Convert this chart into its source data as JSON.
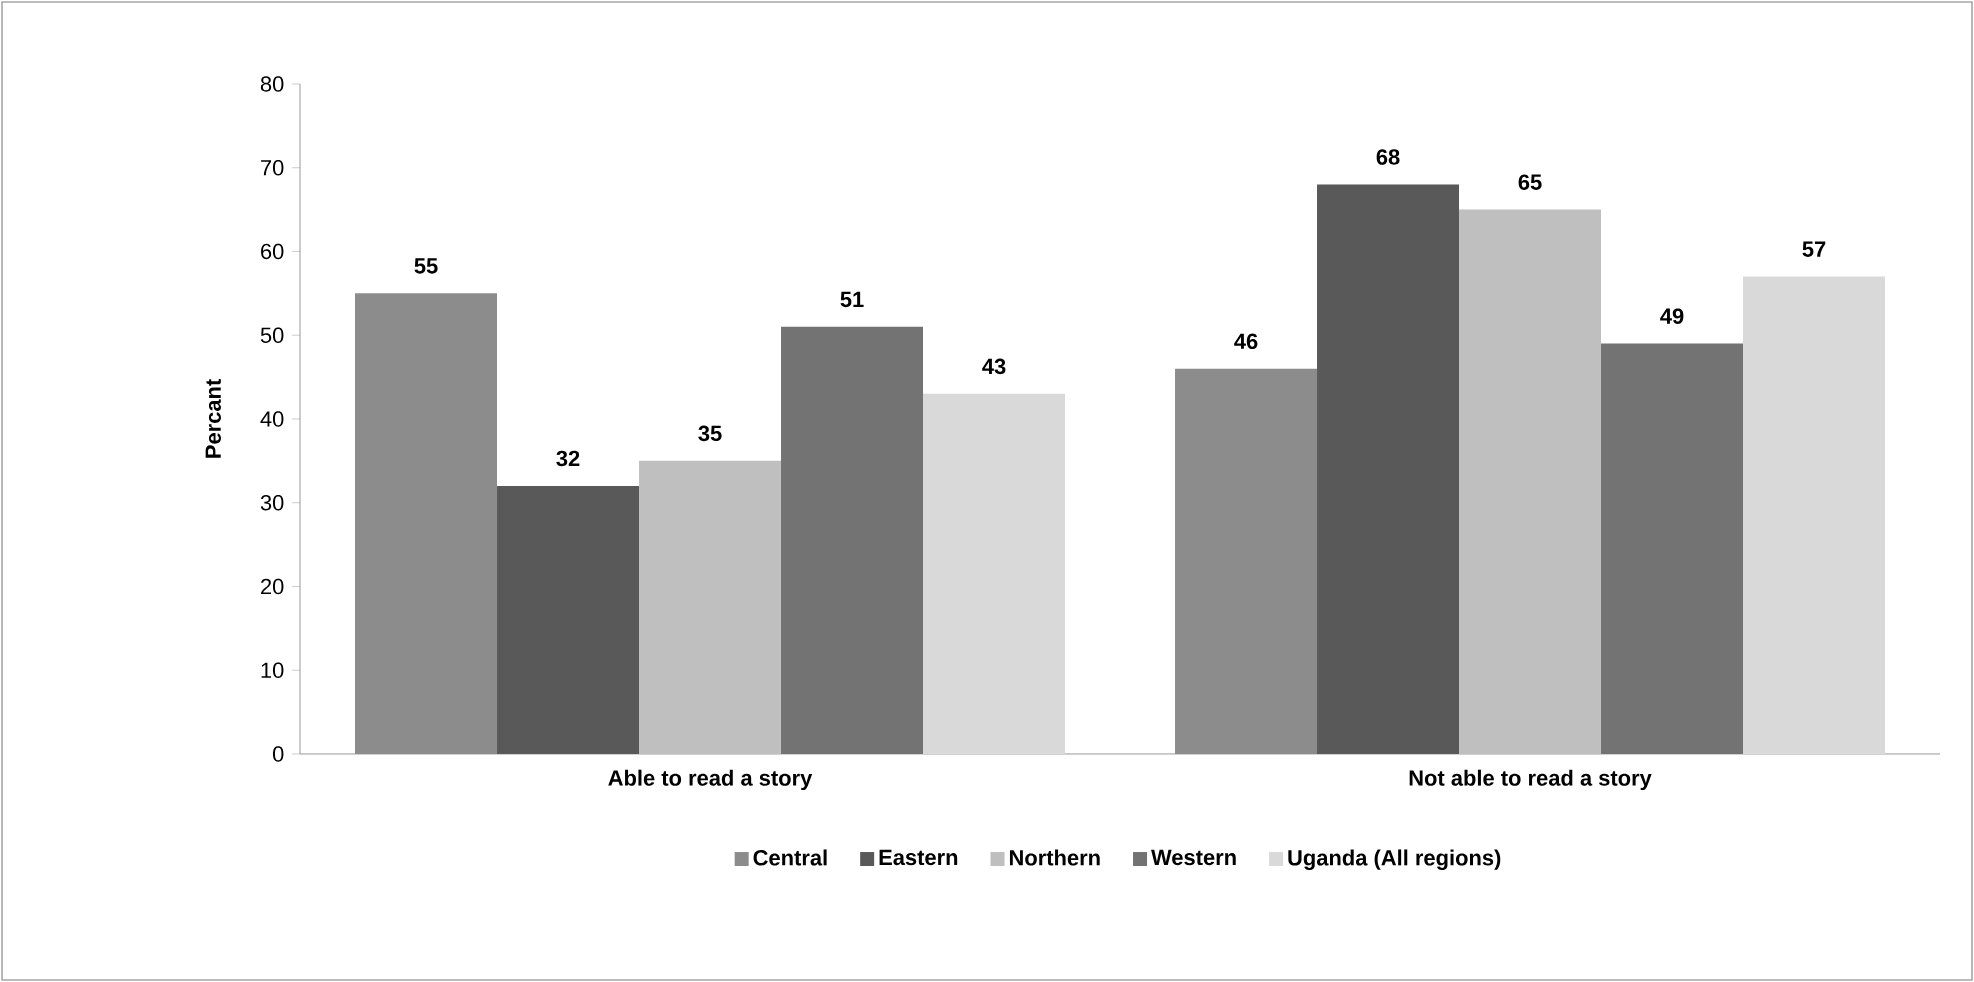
{
  "chart_data": {
    "type": "bar",
    "ylabel": "Percant",
    "categories": [
      "Able to read a story",
      "Not able to read a story"
    ],
    "series": [
      {
        "name": "Central",
        "color": "#8c8c8c",
        "values": [
          55,
          46
        ]
      },
      {
        "name": "Eastern",
        "color": "#595959",
        "values": [
          32,
          68
        ]
      },
      {
        "name": "Northern",
        "color": "#bfbfbf",
        "values": [
          35,
          65
        ]
      },
      {
        "name": "Western",
        "color": "#737373",
        "values": [
          51,
          49
        ]
      },
      {
        "name": "Uganda (All regions)",
        "color": "#d9d9d9",
        "values": [
          43,
          57
        ]
      }
    ],
    "ylim": [
      0,
      80
    ],
    "yticks": [
      0,
      10,
      20,
      30,
      40,
      50,
      60,
      70,
      80
    ],
    "data_labels": true,
    "legend": "bottom",
    "grid": false
  }
}
